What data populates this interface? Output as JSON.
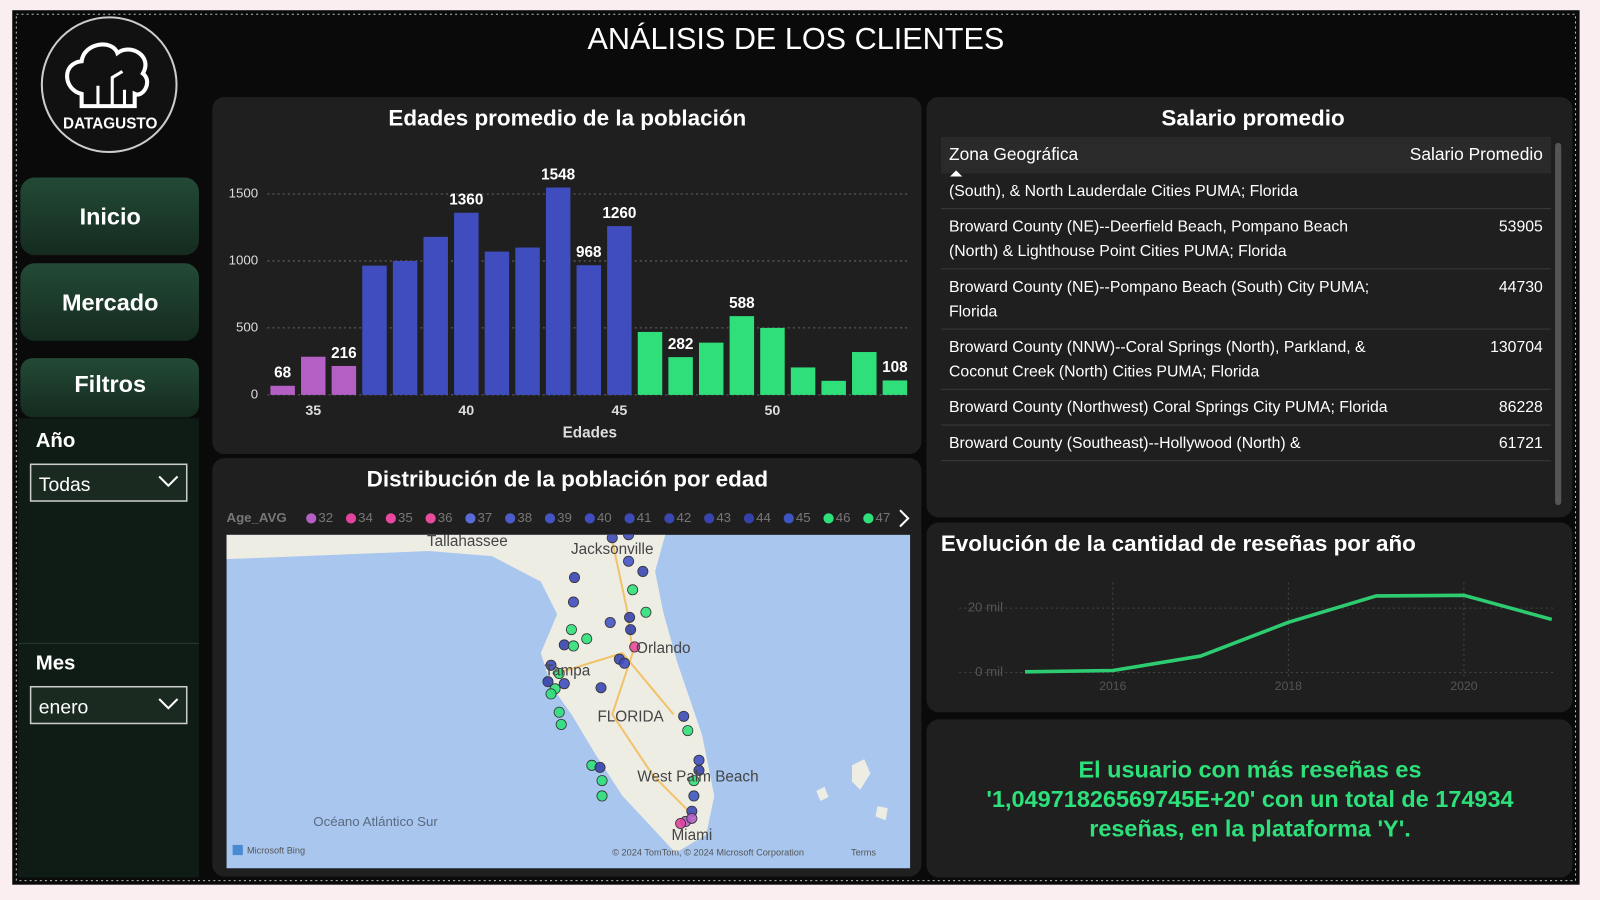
{
  "header": {
    "title": "ANÁLISIS DE LOS CLIENTES"
  },
  "logo": {
    "text": "DATAGUSTO"
  },
  "nav": {
    "buttons": [
      "Inicio",
      "Mercado",
      "Filtros"
    ]
  },
  "filters": [
    {
      "label": "Año",
      "value": "Todas"
    },
    {
      "label": "Mes",
      "value": "enero"
    }
  ],
  "chart_data": [
    {
      "type": "bar",
      "title": "Edades promedio de la población",
      "xlabel": "Edades",
      "x": [
        34,
        35,
        36,
        37,
        38,
        39,
        40,
        41,
        42,
        43,
        44,
        45,
        46,
        47,
        48,
        49,
        50,
        51,
        52,
        53,
        54
      ],
      "values": [
        68,
        285,
        216,
        965,
        1000,
        1180,
        1360,
        1070,
        1100,
        1548,
        968,
        1260,
        470,
        282,
        390,
        588,
        500,
        205,
        105,
        320,
        108
      ],
      "value_labels": [
        "68",
        null,
        "216",
        null,
        null,
        null,
        "1360",
        null,
        null,
        "1548",
        "968",
        "1260",
        null,
        "282",
        null,
        "588",
        null,
        null,
        null,
        null,
        "108"
      ],
      "colors": [
        "#b35fc4",
        "#b35fc4",
        "#b35fc4",
        "#3f4dbf",
        "#3f4dbf",
        "#3f4dbf",
        "#3f4dbf",
        "#3f4dbf",
        "#3f4dbf",
        "#3f4dbf",
        "#3f4dbf",
        "#3f4dbf",
        "#2fe07a",
        "#2fe07a",
        "#2fe07a",
        "#2fe07a",
        "#2fe07a",
        "#2fe07a",
        "#2fe07a",
        "#2fe07a",
        "#2fe07a"
      ],
      "xlim": [
        33.5,
        54.5
      ],
      "xticks": [
        35,
        40,
        45,
        50
      ],
      "ylim": [
        0,
        1650
      ],
      "yticks": [
        0,
        500,
        1000,
        1500
      ],
      "grid": true
    },
    {
      "type": "line",
      "title": "Evolución de la cantidad de reseñas por año",
      "x": [
        2015,
        2016,
        2017,
        2018,
        2019,
        2020,
        2021
      ],
      "values": [
        200,
        600,
        5100,
        15600,
        23800,
        24000,
        16500
      ],
      "color": "#2ecc71",
      "xlim": [
        2014.25,
        2021.05
      ],
      "xticks": [
        2016,
        2018,
        2020
      ],
      "ylim": [
        -5000,
        28000
      ],
      "yticks": [
        {
          "value": 0,
          "label": "0 mil"
        },
        {
          "value": 20000,
          "label": "20 mil"
        }
      ],
      "grid": true
    }
  ],
  "map": {
    "title": "Distribución de la población por edad",
    "legend": {
      "title": "Age_AVG",
      "items": [
        {
          "label": "32",
          "color": "#b35fc4"
        },
        {
          "label": "34",
          "color": "#e0449c"
        },
        {
          "label": "35",
          "color": "#e8489f"
        },
        {
          "label": "36",
          "color": "#e64d9c"
        },
        {
          "label": "37",
          "color": "#5a6ad6"
        },
        {
          "label": "38",
          "color": "#4c5cc9"
        },
        {
          "label": "39",
          "color": "#4554c3"
        },
        {
          "label": "40",
          "color": "#3f4dbf"
        },
        {
          "label": "41",
          "color": "#3c4ab8"
        },
        {
          "label": "42",
          "color": "#3a47b2"
        },
        {
          "label": "43",
          "color": "#3744ad"
        },
        {
          "label": "44",
          "color": "#3441a8"
        },
        {
          "label": "45",
          "color": "#3d55c0"
        },
        {
          "label": "46",
          "color": "#2fe07a"
        },
        {
          "label": "47",
          "color": "#2fe07a"
        }
      ]
    },
    "places": [
      "Tallahassee",
      "Jacksonville",
      "Orlando",
      "Tampa",
      "FLORIDA",
      "West Palm Beach",
      "Miami",
      "Océano Atlántico Sur"
    ],
    "attribution": [
      "Microsoft Bing",
      "© 2024 TomTom, © 2024 Microsoft Corporation",
      "Terms"
    ]
  },
  "table": {
    "title": "Salario promedio",
    "columns": [
      "Zona Geográfica",
      "Salario Promedio"
    ],
    "rows": [
      [
        "(South), & North Lauderdale Cities PUMA; Florida"
      ],
      [
        "Broward County (NE)--Deerfield Beach, Pompano Beach (North) & Lighthouse Point Cities PUMA; Florida",
        "53905"
      ],
      [
        "Broward County (NE)--Pompano Beach (South) City PUMA; Florida",
        "44730"
      ],
      [
        "Broward County (NNW)--Coral Springs (North), Parkland, & Coconut Creek (North) Cities PUMA; Florida",
        "130704"
      ],
      [
        "Broward County (Northwest) Coral Springs City PUMA; Florida",
        "86228"
      ],
      [
        "Broward County (Southeast)--Hollywood (North) &",
        "61721"
      ]
    ]
  },
  "card": {
    "text": "El usuario con más reseñas es '1,04971826569745E+20' con un total de 174934 reseñas, en la plataforma 'Y'."
  }
}
